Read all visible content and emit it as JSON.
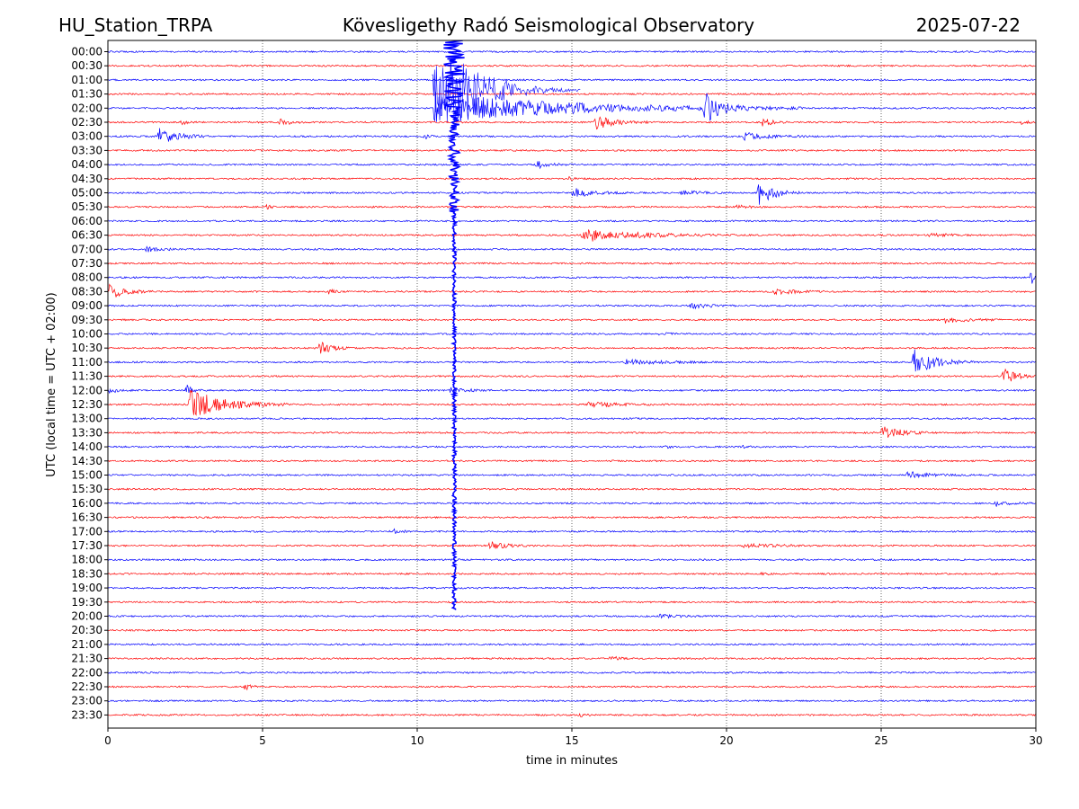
{
  "header": {
    "station": "HU_Station_TRPA",
    "observatory": "Kövesligethy Radó Seismological Observatory",
    "date": "2025-07-22"
  },
  "chart_data": {
    "type": "line",
    "title": "Kövesligethy Radó Seismological Observatory",
    "xlabel": "time in minutes",
    "ylabel": "UTC (local time = UTC + 02:00)",
    "xlim": [
      0,
      30
    ],
    "xticks": [
      "0",
      "5",
      "10",
      "15",
      "20",
      "25",
      "30"
    ],
    "grid_x": true,
    "trace_colors": [
      "#0000ff",
      "#ff0000"
    ],
    "rows": [
      "00:00",
      "00:30",
      "01:00",
      "01:30",
      "02:00",
      "02:30",
      "03:00",
      "03:30",
      "04:00",
      "04:30",
      "05:00",
      "05:30",
      "06:00",
      "06:30",
      "07:00",
      "07:30",
      "08:00",
      "08:30",
      "09:00",
      "09:30",
      "10:00",
      "10:30",
      "11:00",
      "11:30",
      "12:00",
      "12:30",
      "13:00",
      "13:30",
      "14:00",
      "14:30",
      "15:00",
      "15:30",
      "16:00",
      "16:30",
      "17:00",
      "17:30",
      "18:00",
      "18:30",
      "19:00",
      "19:30",
      "20:00",
      "20:30",
      "21:00",
      "21:30",
      "22:00",
      "22:30",
      "23:00",
      "23:30"
    ],
    "events": [
      {
        "row": "02:00",
        "start_min": 10.5,
        "duration_min": 12.0,
        "amplitude": 18
      },
      {
        "row": "02:00",
        "start_min": 19.2,
        "duration_min": 1.5,
        "amplitude": 20
      },
      {
        "row": "02:30",
        "start_min": 2.3,
        "duration_min": 0.6,
        "amplitude": 4
      },
      {
        "row": "02:30",
        "start_min": 5.5,
        "duration_min": 1.0,
        "amplitude": 4
      },
      {
        "row": "02:30",
        "start_min": 15.7,
        "duration_min": 1.8,
        "amplitude": 9
      },
      {
        "row": "02:30",
        "start_min": 21.1,
        "duration_min": 0.9,
        "amplitude": 6
      },
      {
        "row": "02:30",
        "start_min": 29.5,
        "duration_min": 0.5,
        "amplitude": 3
      },
      {
        "row": "03:00",
        "start_min": 1.6,
        "duration_min": 1.8,
        "amplitude": 10
      },
      {
        "row": "03:00",
        "start_min": 10.2,
        "duration_min": 0.6,
        "amplitude": 3
      },
      {
        "row": "03:00",
        "start_min": 20.5,
        "duration_min": 2.5,
        "amplitude": 4
      },
      {
        "row": "04:00",
        "start_min": 13.8,
        "duration_min": 1.2,
        "amplitude": 5
      },
      {
        "row": "04:30",
        "start_min": 14.8,
        "duration_min": 1.0,
        "amplitude": 2
      },
      {
        "row": "05:00",
        "start_min": 15.0,
        "duration_min": 1.8,
        "amplitude": 6
      },
      {
        "row": "05:00",
        "start_min": 18.5,
        "duration_min": 1.5,
        "amplitude": 3
      },
      {
        "row": "05:00",
        "start_min": 21.0,
        "duration_min": 1.5,
        "amplitude": 15
      },
      {
        "row": "05:30",
        "start_min": 5.1,
        "duration_min": 0.4,
        "amplitude": 4
      },
      {
        "row": "05:30",
        "start_min": 20.3,
        "duration_min": 0.7,
        "amplitude": 5
      },
      {
        "row": "06:30",
        "start_min": 15.3,
        "duration_min": 5.0,
        "amplitude": 8
      },
      {
        "row": "06:30",
        "start_min": 26.5,
        "duration_min": 2.0,
        "amplitude": 2
      },
      {
        "row": "07:00",
        "start_min": 1.2,
        "duration_min": 1.5,
        "amplitude": 3
      },
      {
        "row": "08:00",
        "start_min": 29.8,
        "duration_min": 0.2,
        "amplitude": 25
      },
      {
        "row": "08:30",
        "start_min": 0.0,
        "duration_min": 1.5,
        "amplitude": 10
      },
      {
        "row": "08:30",
        "start_min": 7.1,
        "duration_min": 0.6,
        "amplitude": 4
      },
      {
        "row": "08:30",
        "start_min": 21.5,
        "duration_min": 2.0,
        "amplitude": 4
      },
      {
        "row": "09:00",
        "start_min": 18.8,
        "duration_min": 1.5,
        "amplitude": 4
      },
      {
        "row": "09:30",
        "start_min": 27.0,
        "duration_min": 2.0,
        "amplitude": 4
      },
      {
        "row": "10:00",
        "start_min": 17.8,
        "duration_min": 0.8,
        "amplitude": 2
      },
      {
        "row": "10:30",
        "start_min": 6.8,
        "duration_min": 1.2,
        "amplitude": 9
      },
      {
        "row": "11:00",
        "start_min": 16.7,
        "duration_min": 3.5,
        "amplitude": 3
      },
      {
        "row": "11:00",
        "start_min": 26.0,
        "duration_min": 2.0,
        "amplitude": 16
      },
      {
        "row": "11:30",
        "start_min": 28.9,
        "duration_min": 1.1,
        "amplitude": 12
      },
      {
        "row": "12:00",
        "start_min": 0.0,
        "duration_min": 1.0,
        "amplitude": 3
      },
      {
        "row": "12:00",
        "start_min": 2.5,
        "duration_min": 0.6,
        "amplitude": 8
      },
      {
        "row": "12:00",
        "start_min": 11.0,
        "duration_min": 1.5,
        "amplitude": 4
      },
      {
        "row": "12:30",
        "start_min": 2.6,
        "duration_min": 3.2,
        "amplitude": 18
      },
      {
        "row": "12:30",
        "start_min": 15.5,
        "duration_min": 3.0,
        "amplitude": 3
      },
      {
        "row": "13:30",
        "start_min": 25.0,
        "duration_min": 1.5,
        "amplitude": 10
      },
      {
        "row": "14:00",
        "start_min": 18.0,
        "duration_min": 0.4,
        "amplitude": 3
      },
      {
        "row": "14:00",
        "start_min": 20.5,
        "duration_min": 0.5,
        "amplitude": 2
      },
      {
        "row": "15:00",
        "start_min": 25.8,
        "duration_min": 2.0,
        "amplitude": 4
      },
      {
        "row": "16:00",
        "start_min": 28.6,
        "duration_min": 1.4,
        "amplitude": 4
      },
      {
        "row": "17:00",
        "start_min": 9.1,
        "duration_min": 0.8,
        "amplitude": 4
      },
      {
        "row": "17:30",
        "start_min": 12.3,
        "duration_min": 1.5,
        "amplitude": 5
      },
      {
        "row": "17:30",
        "start_min": 20.5,
        "duration_min": 3.5,
        "amplitude": 2
      },
      {
        "row": "18:30",
        "start_min": 21.1,
        "duration_min": 0.5,
        "amplitude": 2
      },
      {
        "row": "20:00",
        "start_min": 17.8,
        "duration_min": 2.0,
        "amplitude": 2
      },
      {
        "row": "21:30",
        "start_min": 16.2,
        "duration_min": 0.7,
        "amplitude": 4
      },
      {
        "row": "22:30",
        "start_min": 4.4,
        "duration_min": 0.6,
        "amplitude": 5
      },
      {
        "row": "23:30",
        "start_min": 15.2,
        "duration_min": 0.4,
        "amplitude": 3
      }
    ],
    "major_event": {
      "x_min": 11.2,
      "start_row": "00:00",
      "end_row": "19:30"
    }
  }
}
